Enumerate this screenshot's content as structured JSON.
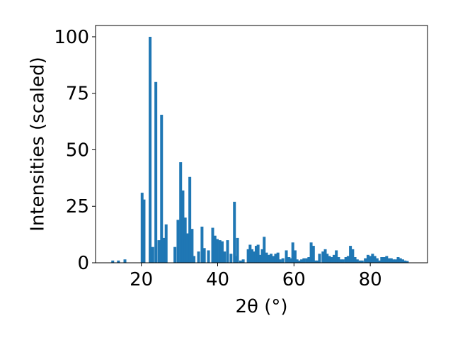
{
  "chart_data": {
    "type": "bar",
    "title": "",
    "xlabel": "2θ (°)",
    "ylabel": "Intensities (scaled)",
    "xlim": [
      8,
      95
    ],
    "ylim": [
      0,
      105
    ],
    "xticks": [
      20,
      40,
      60,
      80
    ],
    "yticks": [
      0,
      25,
      50,
      75,
      100
    ],
    "grid": false,
    "bar_color": "#1f77b4",
    "x": [
      12.5,
      14.0,
      15.7,
      20.2,
      20.7,
      22.3,
      23.0,
      23.8,
      24.6,
      25.3,
      25.9,
      26.5,
      28.8,
      29.6,
      30.3,
      30.9,
      31.5,
      32.1,
      32.7,
      33.3,
      33.8,
      35.0,
      35.9,
      36.5,
      37.6,
      38.7,
      39.3,
      39.9,
      40.6,
      41.2,
      41.8,
      42.6,
      43.5,
      44.4,
      44.8,
      45.2,
      46.0,
      46.7,
      48.0,
      48.5,
      49.0,
      49.6,
      50.1,
      50.6,
      51.2,
      51.7,
      52.2,
      52.8,
      53.4,
      54.0,
      54.6,
      55.2,
      55.8,
      56.4,
      57.1,
      58.0,
      58.7,
      59.2,
      59.7,
      60.3,
      60.8,
      61.4,
      62.0,
      62.6,
      63.3,
      63.9,
      64.5,
      65.1,
      65.6,
      66.1,
      66.7,
      67.6,
      68.2,
      68.7,
      69.3,
      69.8,
      70.5,
      71.1,
      71.7,
      72.3,
      72.9,
      73.6,
      74.2,
      74.8,
      75.4,
      76.0,
      76.6,
      77.3,
      77.9,
      78.7,
      79.4,
      80.0,
      80.6,
      81.2,
      81.8,
      82.4,
      83.0,
      83.6,
      84.3,
      84.9,
      85.5,
      86.1,
      86.7,
      87.3,
      87.9,
      88.5,
      89.1,
      89.7
    ],
    "values": [
      1,
      1,
      1.5,
      31,
      28,
      100,
      7,
      80,
      10,
      65.5,
      11,
      17,
      7,
      19,
      44.5,
      32,
      20,
      13,
      38,
      15,
      3,
      5,
      16,
      6.5,
      5.5,
      15.5,
      12,
      10.5,
      10,
      9.5,
      5,
      10,
      4,
      27,
      3,
      11,
      1,
      1.5,
      6,
      8,
      6,
      5,
      7.5,
      8,
      3.5,
      6,
      11.5,
      4.5,
      3.5,
      4,
      3,
      4,
      4.5,
      1.5,
      2,
      5.5,
      2.5,
      2,
      9,
      5.5,
      1.5,
      1,
      1.5,
      2,
      2,
      2.5,
      9,
      7.5,
      1,
      1,
      4,
      5,
      6,
      4,
      3,
      2.5,
      3.5,
      5.5,
      2.5,
      1.5,
      1.5,
      2.5,
      3,
      7.5,
      6,
      2.5,
      1.5,
      1,
      1,
      2,
      3.5,
      3,
      4,
      3,
      2,
      1,
      2.5,
      2.5,
      3,
      2,
      2,
      1.5,
      1.5,
      2.5,
      2,
      1.5,
      1,
      0.8
    ]
  }
}
